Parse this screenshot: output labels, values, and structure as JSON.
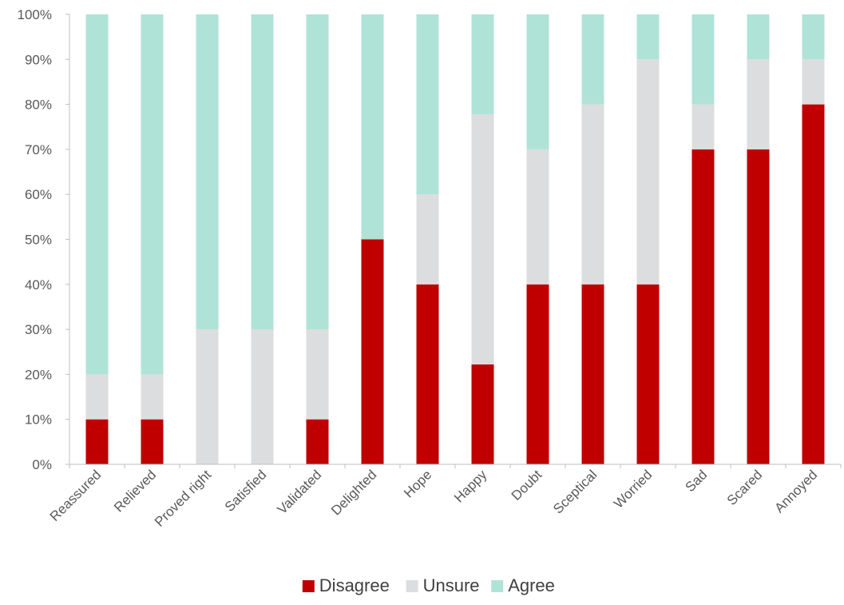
{
  "chart_data": {
    "type": "bar",
    "stacked": true,
    "percent": true,
    "categories": [
      "Reassured",
      "Relieved",
      "Proved right",
      "Satisfied",
      "Validated",
      "Delighted",
      "Hope",
      "Happy",
      "Doubt",
      "Sceptical",
      "Worried",
      "Sad",
      "Scared",
      "Annoyed"
    ],
    "series": [
      {
        "name": "Disagree",
        "color": "#C00000",
        "values": [
          10,
          10,
          0,
          0,
          10,
          50,
          40,
          22.2,
          40,
          40,
          40,
          70,
          70,
          80
        ]
      },
      {
        "name": "Unsure",
        "color": "#DCDDDE",
        "values": [
          10,
          10,
          30,
          30,
          20,
          0,
          20,
          55.6,
          30,
          40,
          50,
          10,
          20,
          10
        ]
      },
      {
        "name": "Agree",
        "color": "#B0E3D7",
        "values": [
          80,
          80,
          70,
          70,
          70,
          50,
          40,
          22.2,
          30,
          20,
          10,
          20,
          10,
          10
        ]
      }
    ],
    "ylim": [
      0,
      100
    ],
    "yticks": [
      "0%",
      "10%",
      "20%",
      "30%",
      "40%",
      "50%",
      "60%",
      "70%",
      "80%",
      "90%",
      "100%"
    ],
    "xlabel": "",
    "ylabel": "",
    "title": "",
    "legend_position": "bottom",
    "grid": false
  }
}
